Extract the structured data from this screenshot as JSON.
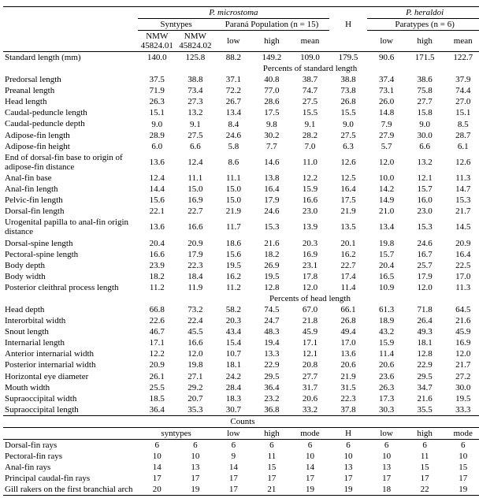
{
  "species1": "P. microstoma",
  "species2": "P. heraldoi",
  "sub_syntypes": "Syntypes",
  "sub_parana": "Paraná Population (n = 15)",
  "sub_paratypes": "Paratypes (n = 6)",
  "col_nmw1": "NMW 45824.01",
  "col_nmw2": "NMW 45824.02",
  "col_low": "low",
  "col_high": "high",
  "col_mean": "mean",
  "col_mode": "mode",
  "col_H": "H",
  "section_percents_sl": "Percents of standard length",
  "section_percents_hl": "Percents of head length",
  "section_counts": "Counts",
  "sl": {
    "label": "Standard length (mm)",
    "v": [
      "140.0",
      "125.8",
      "88.2",
      "149.2",
      "109.0",
      "179.5",
      "90.6",
      "171.5",
      "122.7"
    ]
  },
  "body_rows": [
    {
      "label": "Predorsal length",
      "v": [
        "37.5",
        "38.8",
        "37.1",
        "40.8",
        "38.7",
        "38.8",
        "37.4",
        "38.6",
        "37.9"
      ]
    },
    {
      "label": "Preanal length",
      "v": [
        "71.9",
        "73.4",
        "72.2",
        "77.0",
        "74.7",
        "73.8",
        "73.1",
        "75.8",
        "74.4"
      ]
    },
    {
      "label": "Head length",
      "v": [
        "26.3",
        "27.3",
        "26.7",
        "28.6",
        "27.5",
        "26.8",
        "26.0",
        "27.7",
        "27.0"
      ]
    },
    {
      "label": "Caudal-peduncle length",
      "v": [
        "15.1",
        "13.2",
        "13.4",
        "17.5",
        "15.5",
        "15.5",
        "14.8",
        "15.8",
        "15.1"
      ]
    },
    {
      "label": "Caudal-peduncle depth",
      "v": [
        "9.0",
        "9.1",
        "8.4",
        "9.8",
        "9.1",
        "9.0",
        "7.9",
        "9.0",
        "8.5"
      ]
    },
    {
      "label": "Adipose-fin length",
      "v": [
        "28.9",
        "27.5",
        "24.6",
        "30.2",
        "28.2",
        "27.5",
        "27.9",
        "30.0",
        "28.7"
      ]
    },
    {
      "label": "Adipose-fin height",
      "v": [
        "6.0",
        "6.6",
        "5.8",
        "7.7",
        "7.0",
        "6.3",
        "5.7",
        "6.6",
        "6.1"
      ]
    },
    {
      "label": "End of dorsal-fin base to origin of adipose-fin distance",
      "v": [
        "13.6",
        "12.4",
        "8.6",
        "14.6",
        "11.0",
        "12.6",
        "12.0",
        "13.2",
        "12.6"
      ]
    },
    {
      "label": "Anal-fin base",
      "v": [
        "12.4",
        "11.1",
        "11.1",
        "13.8",
        "12.2",
        "12.5",
        "10.0",
        "12.1",
        "11.3"
      ]
    },
    {
      "label": "Anal-fin length",
      "v": [
        "14.4",
        "15.0",
        "15.0",
        "16.4",
        "15.9",
        "16.4",
        "14.2",
        "15.7",
        "14.7"
      ]
    },
    {
      "label": "Pelvic-fin length",
      "v": [
        "15.6",
        "16.9",
        "15.0",
        "17.9",
        "16.6",
        "17.5",
        "14.9",
        "16.0",
        "15.3"
      ]
    },
    {
      "label": "Dorsal-fin length",
      "v": [
        "22.1",
        "22.7",
        "21.9",
        "24.6",
        "23.0",
        "21.9",
        "21.0",
        "23.0",
        "21.7"
      ]
    },
    {
      "label": "Urogenital papilla to anal-fin origin distance",
      "v": [
        "13.6",
        "16.6",
        "11.7",
        "15.3",
        "13.9",
        "13.5",
        "13.4",
        "15.3",
        "14.5"
      ]
    },
    {
      "label": "Dorsal-spine length",
      "v": [
        "20.4",
        "20.9",
        "18.6",
        "21.6",
        "20.3",
        "20.1",
        "19.8",
        "24.6",
        "20.9"
      ]
    },
    {
      "label": "Pectoral-spine length",
      "v": [
        "16.6",
        "17.9",
        "15.6",
        "18.2",
        "16.9",
        "16.2",
        "15.7",
        "16.7",
        "16.4"
      ]
    },
    {
      "label": "Body depth",
      "v": [
        "23.9",
        "22.3",
        "19.5",
        "26.9",
        "23.1",
        "22.7",
        "20.4",
        "25.7",
        "22.5"
      ]
    },
    {
      "label": "Body width",
      "v": [
        "18.2",
        "18.4",
        "16.2",
        "19.5",
        "17.8",
        "17.4",
        "16.5",
        "17.9",
        "17.0"
      ]
    },
    {
      "label": "Posterior cleithral process length",
      "v": [
        "11.2",
        "11.9",
        "11.2",
        "12.8",
        "12.0",
        "11.4",
        "10.9",
        "12.0",
        "11.3"
      ]
    }
  ],
  "head_rows": [
    {
      "label": "Head depth",
      "v": [
        "66.8",
        "73.2",
        "58.2",
        "74.5",
        "67.0",
        "66.1",
        "61.3",
        "71.8",
        "64.5"
      ]
    },
    {
      "label": "Interorbital width",
      "v": [
        "22.6",
        "22.4",
        "20.3",
        "24.7",
        "21.8",
        "26.8",
        "18.9",
        "26.4",
        "21.6"
      ]
    },
    {
      "label": "Snout length",
      "v": [
        "46.7",
        "45.5",
        "43.4",
        "48.3",
        "45.9",
        "49.4",
        "43.2",
        "49.3",
        "45.9"
      ]
    },
    {
      "label": "Internarial length",
      "v": [
        "17.1",
        "16.6",
        "15.4",
        "19.4",
        "17.1",
        "17.0",
        "15.9",
        "18.1",
        "16.9"
      ]
    },
    {
      "label": "Anterior internarial width",
      "v": [
        "12.2",
        "12.0",
        "10.7",
        "13.3",
        "12.1",
        "13.6",
        "11.4",
        "12.8",
        "12.0"
      ]
    },
    {
      "label": "Posterior internarial width",
      "v": [
        "20.9",
        "19.8",
        "18.1",
        "22.9",
        "20.8",
        "20.6",
        "20.6",
        "22.9",
        "21.7"
      ]
    },
    {
      "label": "Horizontal eye diameter",
      "v": [
        "26.1",
        "27.1",
        "24.2",
        "29.5",
        "27.7",
        "21.9",
        "23.6",
        "29.5",
        "27.2"
      ]
    },
    {
      "label": "Mouth width",
      "v": [
        "25.5",
        "29.2",
        "28.4",
        "36.4",
        "31.7",
        "31.5",
        "26.3",
        "34.7",
        "30.0"
      ]
    },
    {
      "label": "Supraoccipital width",
      "v": [
        "18.5",
        "20.7",
        "18.3",
        "23.2",
        "20.6",
        "22.3",
        "17.3",
        "21.6",
        "19.5"
      ]
    },
    {
      "label": "Supraoccipital length",
      "v": [
        "36.4",
        "35.3",
        "30.7",
        "36.8",
        "33.2",
        "37.8",
        "30.3",
        "35.5",
        "33.3"
      ]
    }
  ],
  "counts_header": {
    "c1": "syntypes",
    "c2": "low",
    "c3": "high",
    "c4": "mode",
    "c5": "H",
    "c6": "low",
    "c7": "high",
    "c8": "mode"
  },
  "counts_rows": [
    {
      "label": "Dorsal-fin rays",
      "v": [
        "6",
        "6",
        "6",
        "6",
        "6",
        "6",
        "6",
        "6",
        "6"
      ]
    },
    {
      "label": "Pectoral-fin rays",
      "v": [
        "10",
        "10",
        "9",
        "11",
        "10",
        "10",
        "10",
        "11",
        "10"
      ]
    },
    {
      "label": "Anal-fin rays",
      "v": [
        "14",
        "13",
        "14",
        "15",
        "14",
        "13",
        "13",
        "15",
        "15"
      ]
    },
    {
      "label": "Principal caudal-fin rays",
      "v": [
        "17",
        "17",
        "17",
        "17",
        "17",
        "17",
        "17",
        "17",
        "17"
      ]
    },
    {
      "label": "Gill rakers on the first branchial  arch",
      "v": [
        "20",
        "19",
        "17",
        "21",
        "19",
        "19",
        "18",
        "22",
        "19"
      ]
    }
  ]
}
